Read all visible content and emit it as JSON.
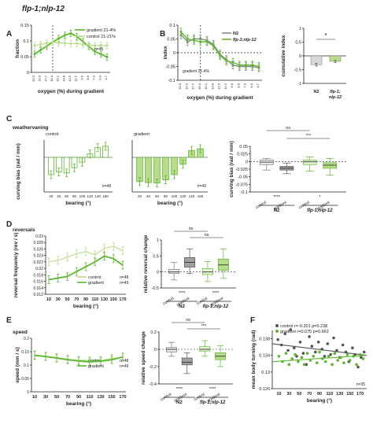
{
  "figure": {
    "title": "flp-1;nlp-12",
    "panel_letters": [
      "A",
      "B",
      "C",
      "D",
      "E",
      "F"
    ]
  },
  "colors": {
    "control": "#b9dc8a",
    "gradient": "#5cb82e",
    "n2_box": "#d8d8d8",
    "n2_grad_box": "#a0a0a0",
    "dark": "#555555",
    "axis": "#222222"
  },
  "chart_data": [
    {
      "panel": "A",
      "type": "line",
      "ylabel": "fraction",
      "xlabel": "oxygen (%) during gradient",
      "x_ticks": [
        "20.3",
        "19.0",
        "17.7",
        "16.4",
        "15.1",
        "13.8",
        "12.5",
        "11.2",
        "9.9",
        "8.6",
        "7.3",
        "6.0",
        "4.7"
      ],
      "ylim": [
        0,
        0.15
      ],
      "y_ticks": [
        "0",
        "0.05",
        "0.1",
        "0.15"
      ],
      "annotation": "n=45",
      "series": [
        {
          "name": "gradient 21-4%",
          "values": [
            0.058,
            0.071,
            0.083,
            0.096,
            0.108,
            0.118,
            0.124,
            0.114,
            0.098,
            0.082,
            0.066,
            0.058,
            0.049
          ]
        },
        {
          "name": "control 21-21%",
          "values": [
            0.085,
            0.089,
            0.093,
            0.096,
            0.094,
            0.093,
            0.091,
            0.092,
            0.088,
            0.087,
            0.085,
            0.086,
            0.085
          ]
        }
      ]
    },
    {
      "panel": "B",
      "type": "line",
      "ylabel": "index",
      "xlabel": "oxygen (%) during gradient",
      "x_ticks": [
        "20.3",
        "19.0",
        "17.7",
        "16.4",
        "15.1",
        "13.8",
        "12.5",
        "11.2",
        "9.9",
        "8.6",
        "7.3",
        "6.0",
        "4.7"
      ],
      "ylim": [
        -0.1,
        0.1
      ],
      "y_ticks": [
        "-0.1",
        "-0.05",
        "0",
        "0.05",
        "0.1"
      ],
      "annotation": "gradient 21-4%",
      "series": [
        {
          "name": "N2",
          "values": [
            0.065,
            0.04,
            0.05,
            0.05,
            0.045,
            0.03,
            -0.005,
            -0.025,
            -0.045,
            -0.05,
            -0.05,
            -0.05,
            -0.055
          ]
        },
        {
          "name": "flp-1;nlp-12",
          "values": [
            0.075,
            0.05,
            0.045,
            0.04,
            0.04,
            0.025,
            -0.01,
            -0.03,
            -0.035,
            -0.045,
            -0.045,
            -0.045,
            -0.05
          ]
        }
      ]
    },
    {
      "panel": "B2",
      "type": "bar",
      "ylabel": "cumulative index",
      "categories": [
        "N2",
        "flp-1;\nnlp-12"
      ],
      "values": [
        -0.32,
        -0.2
      ],
      "errors": [
        0.05,
        0.04
      ],
      "ylim": [
        -1,
        1
      ],
      "y_ticks": [
        "-1",
        "-0.5",
        "0",
        "0.5",
        "1"
      ],
      "significance": "*"
    },
    {
      "panel": "C",
      "type": "bar",
      "header": "weathervaning",
      "ylabel": "curving bias (rad / mm)",
      "xlabel": "bearing (°)",
      "categories": [
        "20",
        "40",
        "60",
        "80",
        "100",
        "120",
        "140",
        "160"
      ],
      "ylim": [
        -0.1,
        0.05
      ],
      "series": [
        {
          "name": "control",
          "values": [
            -0.05,
            -0.042,
            -0.045,
            -0.03,
            -0.014,
            0.01,
            0.028,
            0.032
          ],
          "annotation": "n=48"
        },
        {
          "name": "gradient",
          "values": [
            -0.07,
            -0.073,
            -0.074,
            -0.065,
            -0.05,
            -0.02,
            0.02,
            0.025
          ],
          "annotation": "n=49"
        }
      ]
    },
    {
      "panel": "C2",
      "type": "box",
      "ylabel": "curving bias (rad / mm)",
      "ylim": [
        -0.1,
        0.05
      ],
      "y_ticks": [
        "-0.1",
        "-0.075",
        "-0.05",
        "-0.025",
        "0",
        "0.025",
        "0.05"
      ],
      "groups": [
        {
          "label": "control",
          "strain": "N2",
          "q1": -0.01,
          "median": -0.002,
          "q3": 0.005,
          "whisker_low": -0.028,
          "whisker_high": 0.01
        },
        {
          "label": "gradient",
          "strain": "N2",
          "q1": -0.028,
          "median": -0.022,
          "q3": -0.016,
          "whisker_low": -0.04,
          "whisker_high": -0.005
        },
        {
          "label": "control",
          "strain": "flp-1;nlp-12",
          "q1": -0.01,
          "median": -0.001,
          "q3": 0.005,
          "whisker_low": -0.032,
          "whisker_high": 0.015
        },
        {
          "label": "gradient",
          "strain": "flp-1;nlp-12",
          "q1": -0.022,
          "median": -0.012,
          "q3": -0.004,
          "whisker_low": -0.045,
          "whisker_high": 0.01
        }
      ],
      "strains": [
        "N2",
        "flp-1;nlp-12"
      ],
      "significance": [
        "ns",
        "***",
        "****",
        "*"
      ]
    },
    {
      "panel": "D",
      "type": "line",
      "header": "reversals",
      "ylabel": "reversal frequency (rev / s)",
      "xlabel": "bearing (°)",
      "x_ticks": [
        "10",
        "30",
        "50",
        "70",
        "90",
        "110",
        "130",
        "150",
        "170"
      ],
      "ylim": [
        0.012,
        0.03
      ],
      "y_ticks": [
        "0.012",
        "0.014",
        "0.016",
        "0.018",
        "0.02",
        "0.022",
        "0.024",
        "0.026",
        "0.028",
        "0.03"
      ],
      "series": [
        {
          "name": "control",
          "values": [
            0.022,
            0.0225,
            0.0235,
            0.0245,
            0.0252,
            0.0242,
            0.0262,
            0.0268,
            0.0255
          ],
          "annotation": "n=48"
        },
        {
          "name": "gradient",
          "values": [
            0.0165,
            0.017,
            0.0175,
            0.019,
            0.0205,
            0.022,
            0.0238,
            0.023,
            0.021
          ],
          "annotation": "n=49"
        }
      ]
    },
    {
      "panel": "D2",
      "type": "box",
      "ylabel": "relative reversal change",
      "ylim": [
        -0.5,
        1
      ],
      "y_ticks": [
        "-0.5",
        "0",
        "0.5",
        "1"
      ],
      "groups": [
        {
          "label": "control",
          "strain": "N2",
          "q1": -0.05,
          "median": 0.0,
          "q3": 0.08,
          "whisker_low": -0.25,
          "whisker_high": 0.3
        },
        {
          "label": "gradient",
          "strain": "N2",
          "q1": 0.15,
          "median": 0.3,
          "q3": 0.45,
          "whisker_low": -0.05,
          "whisker_high": 0.72
        },
        {
          "label": "control",
          "strain": "flp-1;nlp-12",
          "q1": -0.08,
          "median": 0.0,
          "q3": 0.1,
          "whisker_low": -0.3,
          "whisker_high": 0.32
        },
        {
          "label": "gradient",
          "strain": "flp-1;nlp-12",
          "q1": 0.05,
          "median": 0.22,
          "q3": 0.4,
          "whisker_low": -0.2,
          "whisker_high": 0.72
        }
      ],
      "strains": [
        "N2",
        "flp-1;nlp-12"
      ],
      "significance": [
        "ns",
        "ns",
        "****",
        "****"
      ]
    },
    {
      "panel": "E",
      "type": "line",
      "header": "speed",
      "ylabel": "speed (mm / s)",
      "xlabel": "bearing (°)",
      "x_ticks": [
        "10",
        "30",
        "50",
        "70",
        "90",
        "110",
        "130",
        "150",
        "170"
      ],
      "ylim": [
        0,
        0.2
      ],
      "y_ticks": [
        "0",
        "0.05",
        "0.1",
        "0.15",
        "0.2"
      ],
      "series": [
        {
          "name": "control",
          "values": [
            0.138,
            0.133,
            0.128,
            0.122,
            0.118,
            0.117,
            0.118,
            0.125,
            0.128
          ],
          "annotation": "n=48"
        },
        {
          "name": "gradient",
          "values": [
            0.136,
            0.132,
            0.126,
            0.12,
            0.115,
            0.112,
            0.114,
            0.12,
            0.13
          ],
          "annotation": "n=49"
        }
      ]
    },
    {
      "panel": "E2",
      "type": "box",
      "ylabel": "relative speed change",
      "ylim": [
        -0.4,
        0.2
      ],
      "y_ticks": [
        "-0.4",
        "-0.2",
        "0",
        "0.2"
      ],
      "groups": [
        {
          "label": "control",
          "strain": "N2",
          "q1": -0.03,
          "median": 0.0,
          "q3": 0.02,
          "whisker_low": -0.08,
          "whisker_high": 0.08
        },
        {
          "label": "gradient",
          "strain": "N2",
          "q1": -0.18,
          "median": -0.15,
          "q3": -0.1,
          "whisker_low": -0.28,
          "whisker_high": -0.04
        },
        {
          "label": "control",
          "strain": "flp-1;nlp-12",
          "q1": -0.02,
          "median": 0.0,
          "q3": 0.03,
          "whisker_low": -0.08,
          "whisker_high": 0.1
        },
        {
          "label": "gradient",
          "strain": "flp-1;nlp-12",
          "q1": -0.12,
          "median": -0.08,
          "q3": -0.04,
          "whisker_low": -0.2,
          "whisker_high": 0.04
        }
      ],
      "strains": [
        "N2",
        "flp-1;nlp-12"
      ],
      "significance": [
        "ns",
        "***",
        "****",
        "****"
      ]
    },
    {
      "panel": "F",
      "type": "scatter",
      "ylabel": "mean body turning (rad)",
      "xlabel": "bearing (°)",
      "x_ticks": [
        "10",
        "30",
        "50",
        "70",
        "90",
        "110",
        "130",
        "150",
        "170"
      ],
      "ylim": [
        0.126,
        0.14
      ],
      "y_ticks": [
        "0.126",
        "0.13",
        "0.134",
        "0.138"
      ],
      "annotation": "n=35",
      "series": [
        {
          "name": "control",
          "stats": "r=-0.201  p=0.238",
          "x": [
            8,
            15,
            22,
            28,
            33,
            40,
            45,
            52,
            58,
            64,
            70,
            75,
            82,
            88,
            95,
            100,
            106,
            112,
            118,
            124,
            130,
            136,
            142,
            148,
            155,
            160,
            166,
            172,
            178
          ],
          "y": [
            0.1378,
            0.1365,
            0.1392,
            0.1352,
            0.1402,
            0.1358,
            0.1338,
            0.1372,
            0.1345,
            0.1318,
            0.1385,
            0.1362,
            0.1348,
            0.1372,
            0.1355,
            0.1338,
            0.1368,
            0.1342,
            0.1382,
            0.1352,
            0.1335,
            0.1365,
            0.1348,
            0.1325,
            0.1358,
            0.1342,
            0.1312,
            0.1335,
            0.1348
          ],
          "trend": [
            0.1368,
            0.134
          ]
        },
        {
          "name": "gradient",
          "stats": "r=0.075  p=0.662",
          "x": [
            10,
            17,
            24,
            30,
            36,
            42,
            48,
            55,
            60,
            66,
            72,
            78,
            85,
            90,
            96,
            102,
            108,
            115,
            120,
            126,
            132,
            138,
            145,
            150,
            157,
            163,
            170,
            176
          ],
          "y": [
            0.1338,
            0.1325,
            0.1345,
            0.1318,
            0.1332,
            0.1342,
            0.1325,
            0.1335,
            0.1318,
            0.1345,
            0.1328,
            0.1338,
            0.1322,
            0.1348,
            0.1332,
            0.1325,
            0.1338,
            0.1318,
            0.1345,
            0.1328,
            0.1335,
            0.1322,
            0.1342,
            0.1328,
            0.1338,
            0.1318,
            0.1342,
            0.1332
          ],
          "trend": [
            0.1325,
            0.134
          ]
        }
      ]
    }
  ]
}
